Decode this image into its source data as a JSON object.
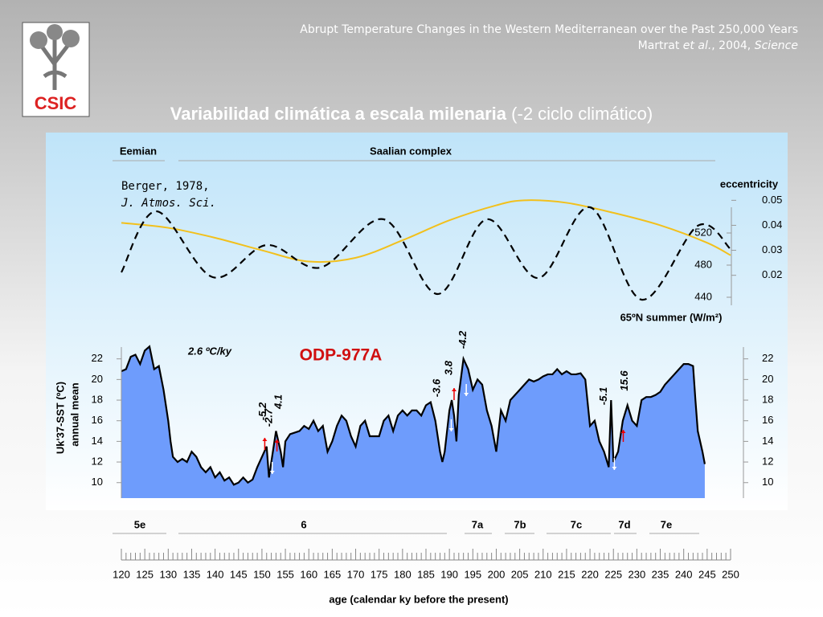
{
  "header": {
    "title": "Abrupt Temperature Changes in the Western Mediterranean over the Past 250,000 Years",
    "citation": [
      "Martrat",
      " et al.",
      ", 2004, ",
      "Science"
    ],
    "logo": "CSIC"
  },
  "slide_title": {
    "main": "Variabilidad climática a escala milenaria",
    "sub": "(-2 ciclo climático)"
  },
  "chart_data": [
    {
      "type": "line",
      "periods": [
        "Eemian",
        "Saalian complex"
      ],
      "annotations": [
        "Berger, 1978,",
        "J. Atmos. Sci."
      ],
      "xlim": [
        120,
        250
      ],
      "ylim": [
        430,
        570
      ],
      "yticks": [
        440,
        480,
        520
      ],
      "ylabel": "65ºN summer (W/m²)",
      "y2lim": [
        0.008,
        0.053
      ],
      "y2ticks": [
        0.02,
        0.03,
        0.04,
        0.05
      ],
      "y2label": "eccentricity",
      "series": [
        {
          "color": "#f2c01c",
          "axis": "y2",
          "x": [
            120,
            130,
            140,
            150,
            160,
            170,
            180,
            190,
            200,
            206,
            215,
            225,
            235,
            245,
            250
          ],
          "values": [
            0.041,
            0.039,
            0.035,
            0.03,
            0.0255,
            0.027,
            0.034,
            0.042,
            0.048,
            0.05,
            0.049,
            0.045,
            0.04,
            0.033,
            0.028
          ]
        },
        {
          "color": "#000000",
          "dashed": true,
          "x": [
            120,
            127.5,
            139.5,
            151,
            162.5,
            176,
            187.5,
            198,
            209,
            220,
            231,
            243,
            250
          ],
          "values": [
            471,
            547,
            465,
            505,
            477,
            537,
            444,
            537,
            464,
            552,
            437,
            529,
            500
          ]
        }
      ]
    },
    {
      "type": "area",
      "title": "ODP-977A",
      "rate": "2.6 ºC/ky",
      "color": "#6e9cfc",
      "annotations": [
        "-5.2",
        "-2.7",
        "4.1",
        "-3.6",
        "3.8",
        "-4.2",
        "-5.1",
        "15.6"
      ],
      "stages": [
        "5e",
        "6",
        "7a",
        "7b",
        "7c",
        "7d",
        "7e"
      ],
      "xlim": [
        120,
        250
      ],
      "xticks": [
        120,
        125,
        130,
        135,
        140,
        145,
        150,
        155,
        160,
        165,
        170,
        175,
        180,
        185,
        190,
        195,
        200,
        205,
        210,
        215,
        220,
        225,
        230,
        235,
        240,
        245,
        250
      ],
      "xlabel": "age (calendar ky before the present)",
      "ylim": [
        8.5,
        23.3
      ],
      "yticks": [
        10,
        12,
        14,
        16,
        18,
        20,
        22
      ],
      "ylabel": [
        "Uk'37-SST (ºC)",
        "annual mean"
      ],
      "x": [
        120,
        121,
        122,
        123,
        124,
        125,
        126,
        127,
        128,
        129,
        130,
        130.5,
        131,
        132,
        133,
        134,
        135,
        136,
        137,
        138,
        139,
        140,
        141,
        142,
        143,
        144,
        145,
        146,
        147,
        148,
        149,
        150,
        151,
        151.5,
        152,
        153,
        154,
        154.5,
        155,
        156,
        158,
        159,
        160,
        161,
        162,
        163,
        164,
        165,
        166,
        167,
        168,
        169,
        170,
        171,
        172,
        173,
        174,
        175,
        176,
        177,
        178,
        179,
        180,
        181,
        182,
        183,
        184,
        185,
        186,
        187,
        188,
        188.5,
        189,
        190,
        190.5,
        191,
        191.5,
        192,
        193,
        194,
        195,
        196,
        197,
        198,
        199,
        200,
        201,
        202,
        203,
        204,
        205,
        206,
        207,
        208,
        209,
        210,
        211,
        212,
        213,
        214,
        215,
        216,
        217,
        218,
        219,
        220,
        221,
        222,
        223,
        224,
        224.5,
        225,
        226,
        227,
        228,
        229,
        230,
        231,
        232,
        233,
        234,
        235,
        236,
        237,
        238,
        239,
        240,
        241,
        242,
        242.5,
        243,
        244,
        244.5
      ],
      "values": [
        20.8,
        21,
        22.2,
        22.4,
        21.5,
        22.8,
        23.2,
        21,
        21.3,
        19,
        16,
        14,
        12.5,
        12,
        12.3,
        12,
        13,
        12.5,
        11.5,
        11,
        11.5,
        10.5,
        11,
        10.2,
        10.5,
        9.8,
        10,
        10.5,
        10,
        10.3,
        11.5,
        12.5,
        13.5,
        10.5,
        12,
        15,
        13,
        11.5,
        14,
        14.7,
        15,
        15.5,
        15.2,
        16,
        15,
        15.5,
        13,
        14,
        15.5,
        16.5,
        16,
        14.5,
        13.5,
        15.5,
        16,
        14.5,
        14.5,
        14.5,
        16,
        16.5,
        15,
        16.5,
        17,
        16.5,
        17,
        17,
        16.5,
        17.5,
        17.8,
        16,
        13,
        12,
        13,
        17,
        18,
        16.5,
        14,
        18.5,
        22,
        21,
        19,
        20,
        19.5,
        17,
        15.5,
        13,
        17,
        16,
        18,
        18.5,
        19,
        19.5,
        20,
        19.8,
        20,
        20.3,
        20.5,
        20.5,
        21,
        20.5,
        20.8,
        20.5,
        20.5,
        20.6,
        20,
        15.5,
        16,
        14,
        13,
        11.5,
        18,
        12,
        13,
        16,
        17.5,
        16,
        15.5,
        18,
        18.3,
        18.3,
        18.5,
        18.8,
        19.5,
        20,
        20.5,
        21,
        21.5,
        21.5,
        21.3,
        18,
        15,
        13,
        11.8
      ]
    }
  ]
}
